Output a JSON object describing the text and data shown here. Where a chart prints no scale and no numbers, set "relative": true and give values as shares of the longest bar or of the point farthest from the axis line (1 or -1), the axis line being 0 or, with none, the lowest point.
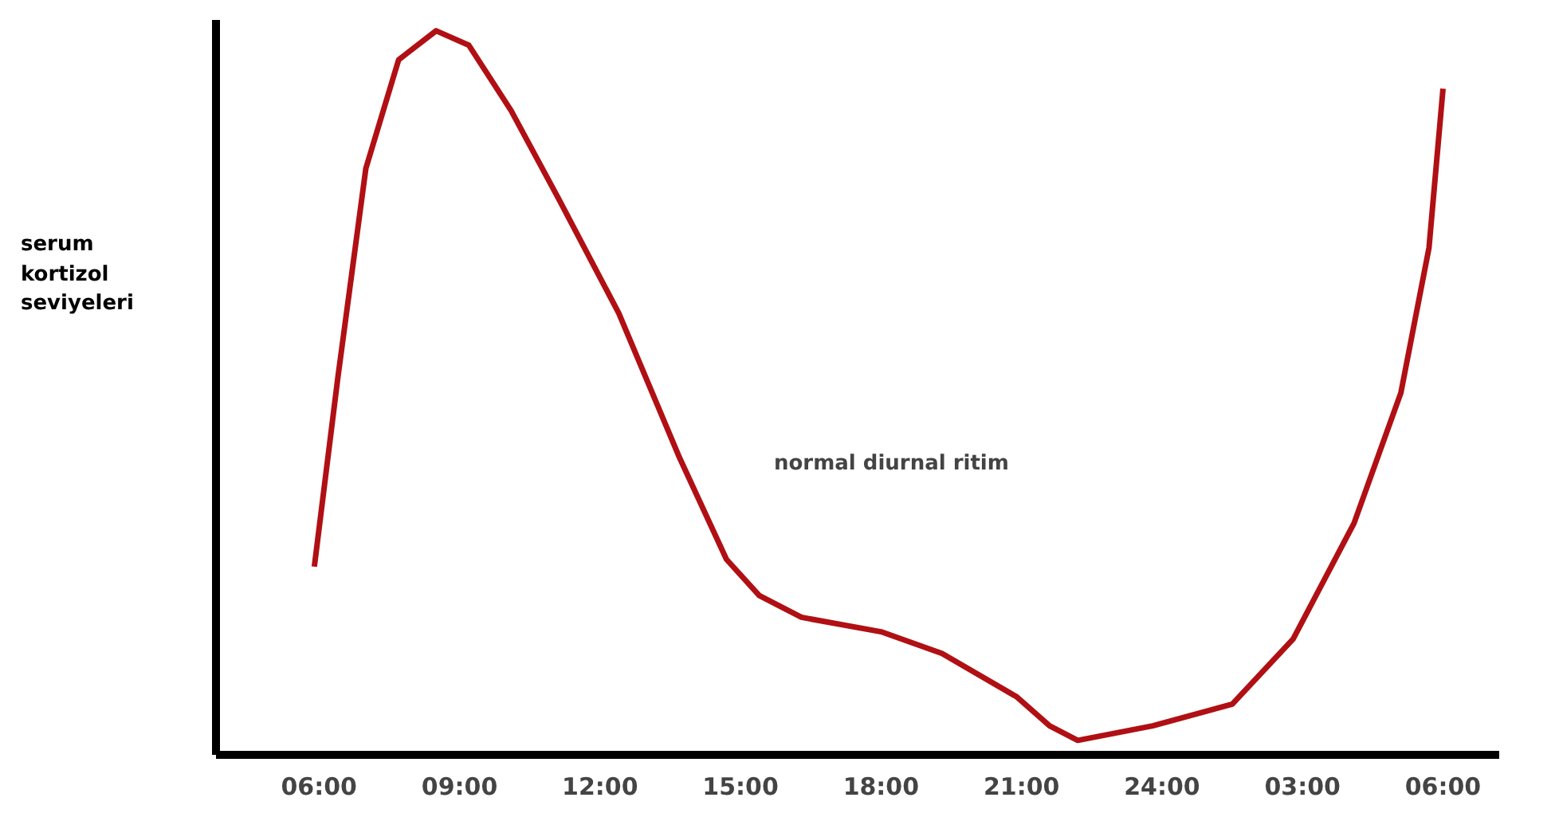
{
  "chart_data": {
    "type": "line",
    "relative": true,
    "ylabel": "serum kortizol seviyeleri",
    "annotations": [
      "normal diurnal ritim"
    ],
    "xlim": [
      "2000-01-01T03:48",
      "2000-01-02T07:12"
    ],
    "xticks": [
      {
        "value": "2000-01-01T06:00",
        "label": "06:00"
      },
      {
        "value": "2000-01-01T09:00",
        "label": "09:00"
      },
      {
        "value": "2000-01-01T12:00",
        "label": "12:00"
      },
      {
        "value": "2000-01-01T15:00",
        "label": "15:00"
      },
      {
        "value": "2000-01-01T18:00",
        "label": "18:00"
      },
      {
        "value": "2000-01-01T21:00",
        "label": "21:00"
      },
      {
        "value": "2000-01-02T00:00",
        "label": "24:00"
      },
      {
        "value": "2000-01-02T03:00",
        "label": "03:00"
      },
      {
        "value": "2000-01-02T06:00",
        "label": "06:00"
      }
    ],
    "grid": false,
    "marker": "none",
    "line_style": "solid",
    "series": [
      {
        "color": "#b01014",
        "x": [
          "2000-01-01T05:54",
          "2000-01-01T06:24",
          "2000-01-01T07:00",
          "2000-01-01T07:42",
          "2000-01-01T08:30",
          "2000-01-01T09:12",
          "2000-01-01T10:06",
          "2000-01-01T11:06",
          "2000-01-01T12:24",
          "2000-01-01T13:42",
          "2000-01-01T14:42",
          "2000-01-01T15:24",
          "2000-01-01T16:18",
          "2000-01-01T18:00",
          "2000-01-01T19:18",
          "2000-01-01T20:54",
          "2000-01-01T21:36",
          "2000-01-01T22:12",
          "2000-01-01T23:48",
          "2000-01-02T01:30",
          "2000-01-02T02:48",
          "2000-01-02T04:06",
          "2000-01-02T05:06",
          "2000-01-02T05:42",
          "2000-01-02T06:00"
        ],
        "values": [
          0.26,
          0.52,
          0.81,
          0.96,
          1.0,
          0.98,
          0.89,
          0.77,
          0.61,
          0.41,
          0.27,
          0.22,
          0.19,
          0.17,
          0.14,
          0.08,
          0.04,
          0.02,
          0.04,
          0.07,
          0.16,
          0.32,
          0.5,
          0.7,
          0.92
        ]
      }
    ]
  }
}
